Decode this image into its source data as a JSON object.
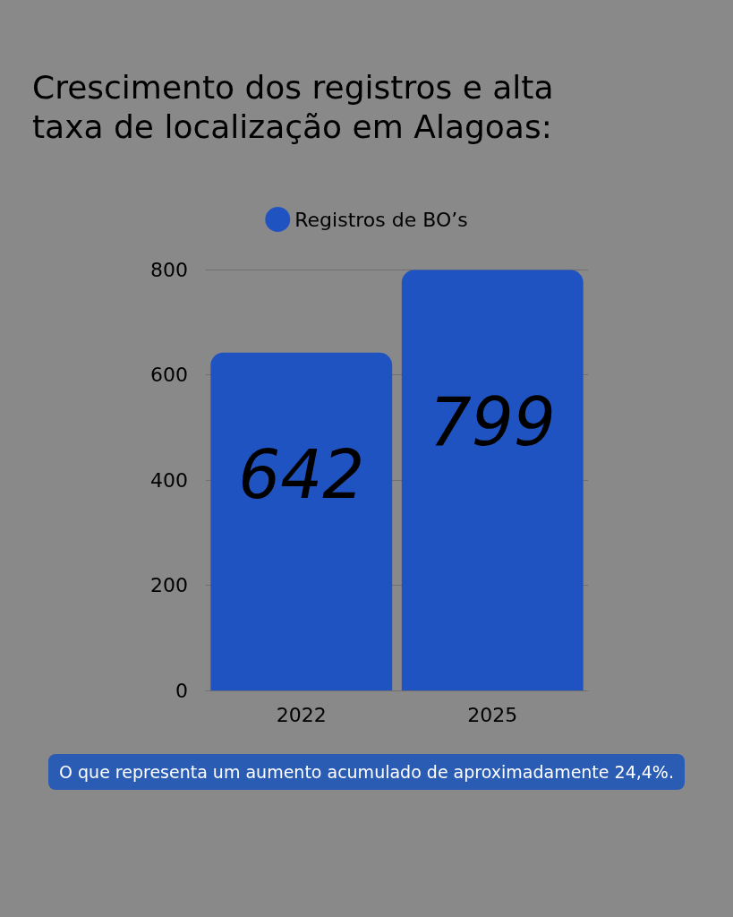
{
  "chart_data": {
    "type": "bar",
    "title": "Crescimento dos registros e alta\ntaxa de localização em Alagoas:",
    "categories": [
      "2022",
      "2025"
    ],
    "series": [
      {
        "name": "Registros de BO’s",
        "color": "#1f53c1",
        "values": [
          642,
          799
        ]
      }
    ],
    "ylim": [
      0,
      800
    ],
    "yticks": [
      0,
      200,
      400,
      600,
      800
    ],
    "grid": "y",
    "legend": "top",
    "data_labels": true,
    "annotations": [
      "O que representa um aumento acumulado de aproximadamente 24,4%."
    ]
  }
}
